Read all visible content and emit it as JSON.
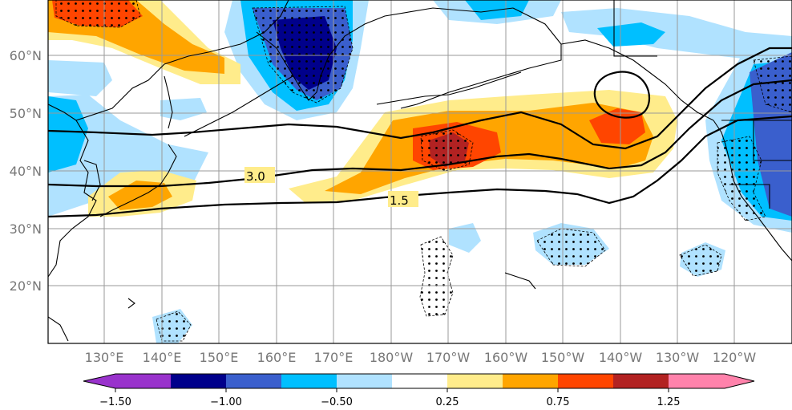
{
  "map": {
    "lat_labels": [
      "60°N",
      "50°N",
      "40°N",
      "30°N",
      "20°N"
    ],
    "lon_labels": [
      "130°E",
      "140°E",
      "150°E",
      "160°E",
      "170°E",
      "180°W",
      "170°W",
      "160°W",
      "150°W",
      "140°W",
      "130°W",
      "120°W"
    ],
    "contour_labels": [
      "3.0",
      "1.5"
    ]
  },
  "colorbar": {
    "tick_labels": [
      "−1.50",
      "−1.00",
      "−0.50",
      "0.25",
      "0.75",
      "1.25"
    ],
    "colors": [
      "#9932cc",
      "#00008b",
      "#3a5fcd",
      "#00bfff",
      "#b0e2ff",
      "#ffffff",
      "#ffec8b",
      "#ffa500",
      "#ff4500",
      "#b22222",
      "#ff82ab"
    ]
  },
  "colors": {
    "light_blue": "#b0e2ff",
    "blue": "#00bfff",
    "royal_blue": "#3a5fcd",
    "navy": "#00008b",
    "yellow": "#ffec8b",
    "orange": "#ffa500",
    "red_orange": "#ff4500",
    "firebrick": "#b22222"
  }
}
